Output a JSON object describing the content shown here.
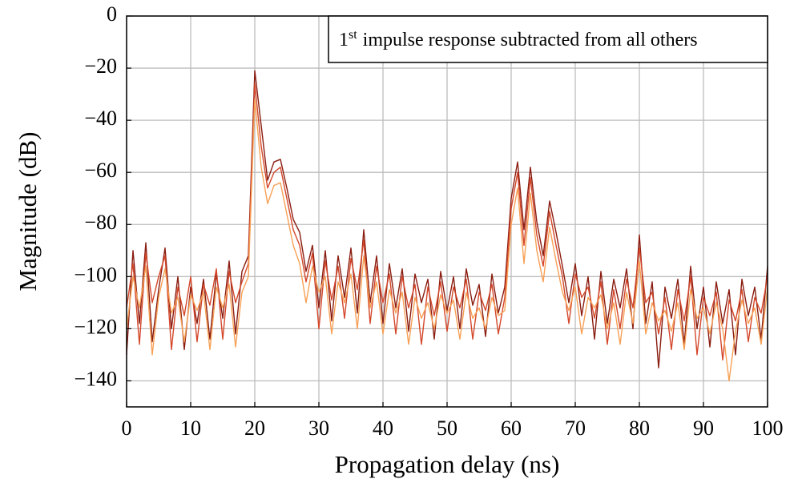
{
  "chart_data": {
    "type": "line",
    "xlabel": "Propagation delay (ns)",
    "ylabel": "Magnitude (dB)",
    "annotation_number": "1",
    "annotation_superscript": "st",
    "annotation": "impulse response subtracted from all others",
    "xlim": [
      0,
      100
    ],
    "ylim": [
      -150,
      0
    ],
    "xticks": [
      0,
      10,
      20,
      30,
      40,
      50,
      60,
      70,
      80,
      90,
      100
    ],
    "yticks": [
      0,
      {
        "value": -20,
        "label": "−20"
      },
      {
        "value": -40,
        "label": "−40"
      },
      {
        "value": -60,
        "label": "−60"
      },
      {
        "value": -80,
        "label": "−80"
      },
      {
        "value": -100,
        "label": "−100"
      },
      {
        "value": -120,
        "label": "−120"
      },
      {
        "value": -140,
        "label": "−140"
      }
    ],
    "grid": true,
    "x": [
      0,
      1,
      2,
      3,
      4,
      5,
      6,
      7,
      8,
      9,
      10,
      11,
      12,
      13,
      14,
      15,
      16,
      17,
      18,
      19,
      20,
      21,
      22,
      23,
      24,
      25,
      26,
      27,
      28,
      29,
      30,
      31,
      32,
      33,
      34,
      35,
      36,
      37,
      38,
      39,
      40,
      41,
      42,
      43,
      44,
      45,
      46,
      47,
      48,
      49,
      50,
      51,
      52,
      53,
      54,
      55,
      56,
      57,
      58,
      59,
      60,
      61,
      62,
      63,
      64,
      65,
      66,
      67,
      68,
      69,
      70,
      71,
      72,
      73,
      74,
      75,
      76,
      77,
      78,
      79,
      80,
      81,
      82,
      83,
      84,
      85,
      86,
      87,
      88,
      89,
      90,
      91,
      92,
      93,
      94,
      95,
      96,
      97,
      98,
      99,
      100
    ],
    "series": [
      {
        "color": "#8a1c10",
        "values": [
          -130,
          -90,
          -118,
          -87,
          -125,
          -105,
          -89,
          -120,
          -100,
          -128,
          -104,
          -118,
          -101,
          -124,
          -99,
          -116,
          -94,
          -122,
          -98,
          -92,
          -21,
          -42,
          -63,
          -56,
          -55,
          -66,
          -78,
          -83,
          -98,
          -88,
          -112,
          -90,
          -117,
          -92,
          -108,
          -89,
          -114,
          -82,
          -110,
          -92,
          -118,
          -95,
          -112,
          -97,
          -121,
          -99,
          -110,
          -101,
          -124,
          -98,
          -113,
          -100,
          -120,
          -97,
          -111,
          -103,
          -123,
          -99,
          -114,
          -104,
          -70,
          -56,
          -82,
          -58,
          -79,
          -92,
          -71,
          -83,
          -96,
          -110,
          -95,
          -115,
          -100,
          -124,
          -98,
          -118,
          -101,
          -112,
          -97,
          -120,
          -84,
          -118,
          -102,
          -135,
          -104,
          -116,
          -101,
          -126,
          -96,
          -120,
          -104,
          -127,
          -102,
          -118,
          -105,
          -130,
          -101,
          -115,
          -104,
          -124,
          -96
        ]
      },
      {
        "color": "#d4472a",
        "values": [
          -112,
          -95,
          -126,
          -91,
          -110,
          -100,
          -92,
          -128,
          -104,
          -115,
          -100,
          -125,
          -103,
          -111,
          -97,
          -124,
          -98,
          -110,
          -102,
          -95,
          -26,
          -50,
          -66,
          -60,
          -58,
          -70,
          -82,
          -88,
          -102,
          -91,
          -120,
          -94,
          -109,
          -96,
          -116,
          -93,
          -105,
          -86,
          -118,
          -96,
          -110,
          -99,
          -122,
          -100,
          -112,
          -103,
          -126,
          -104,
          -115,
          -102,
          -121,
          -104,
          -112,
          -101,
          -124,
          -106,
          -113,
          -103,
          -122,
          -108,
          -74,
          -60,
          -88,
          -62,
          -84,
          -96,
          -75,
          -88,
          -100,
          -118,
          -99,
          -108,
          -104,
          -116,
          -102,
          -126,
          -105,
          -120,
          -101,
          -112,
          -89,
          -110,
          -106,
          -122,
          -108,
          -128,
          -105,
          -117,
          -100,
          -130,
          -108,
          -115,
          -106,
          -132,
          -109,
          -117,
          -105,
          -125,
          -108,
          -114,
          -100
        ]
      },
      {
        "color": "#f7a055",
        "values": [
          -120,
          -100,
          -112,
          -96,
          -130,
          -108,
          -97,
          -114,
          -108,
          -125,
          -107,
          -113,
          -106,
          -128,
          -104,
          -112,
          -103,
          -127,
          -106,
          -100,
          -32,
          -58,
          -72,
          -65,
          -64,
          -76,
          -88,
          -95,
          -110,
          -96,
          -106,
          -100,
          -122,
          -102,
          -110,
          -99,
          -120,
          -92,
          -112,
          -102,
          -122,
          -105,
          -114,
          -106,
          -126,
          -108,
          -116,
          -110,
          -120,
          -107,
          -114,
          -109,
          -124,
          -106,
          -116,
          -112,
          -120,
          -108,
          -115,
          -113,
          -80,
          -66,
          -95,
          -68,
          -90,
          -102,
          -81,
          -94,
          -106,
          -113,
          -104,
          -122,
          -108,
          -112,
          -107,
          -120,
          -110,
          -126,
          -106,
          -118,
          -94,
          -122,
          -110,
          -117,
          -113,
          -121,
          -110,
          -128,
          -105,
          -116,
          -112,
          -122,
          -110,
          -120,
          -140,
          -121,
          -109,
          -118,
          -112,
          -126,
          -104
        ]
      }
    ]
  }
}
